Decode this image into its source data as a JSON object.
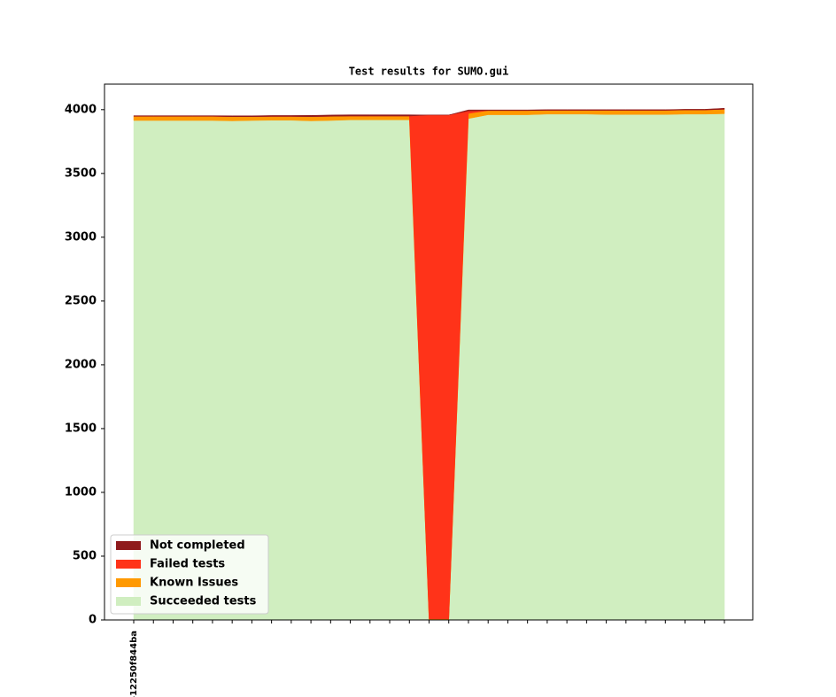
{
  "chart_data": {
    "type": "stacked_area",
    "title": "Test results for SUMO.gui",
    "categories": [
      "-12250f844ba",
      null,
      null,
      null,
      null,
      null,
      null,
      null,
      null,
      null,
      null,
      null,
      null,
      null,
      null,
      null,
      null,
      null,
      null,
      null,
      null,
      null,
      null,
      null,
      null,
      null,
      null,
      null,
      null,
      null,
      null
    ],
    "series": [
      {
        "name": "Succeeded tests",
        "color": "#d0eec0",
        "values": [
          3915,
          3915,
          3915,
          3915,
          3915,
          3912,
          3915,
          3917,
          3917,
          3912,
          3915,
          3920,
          3920,
          3920,
          3920,
          0,
          0,
          3930,
          3960,
          3960,
          3960,
          3965,
          3965,
          3965,
          3962,
          3962,
          3962,
          3962,
          3965,
          3965,
          3968
        ]
      },
      {
        "name": "Known Issues",
        "color": "#ff9900",
        "values": [
          33,
          33,
          33,
          33,
          33,
          33,
          30,
          30,
          30,
          33,
          33,
          30,
          30,
          30,
          30,
          8,
          8,
          40,
          33,
          33,
          33,
          30,
          30,
          30,
          33,
          33,
          33,
          33,
          33,
          33,
          35
        ]
      },
      {
        "name": "Failed tests",
        "color": "#ff3319",
        "values": [
          0,
          0,
          0,
          0,
          0,
          0,
          0,
          0,
          0,
          0,
          0,
          0,
          0,
          0,
          0,
          3950,
          3950,
          20,
          0,
          0,
          0,
          0,
          0,
          0,
          0,
          0,
          0,
          0,
          0,
          0,
          0
        ]
      },
      {
        "name": "Not completed",
        "color": "#8f1a1c",
        "values": [
          5,
          5,
          5,
          5,
          5,
          7,
          7,
          7,
          7,
          10,
          10,
          10,
          10,
          10,
          10,
          0,
          0,
          8,
          5,
          5,
          5,
          5,
          5,
          5,
          5,
          5,
          5,
          5,
          5,
          5,
          8
        ]
      }
    ],
    "ylim": [
      0,
      4200
    ],
    "yticks": [
      0,
      500,
      1000,
      1500,
      2000,
      2500,
      3000,
      3500,
      4000
    ],
    "legend": "lower left"
  }
}
